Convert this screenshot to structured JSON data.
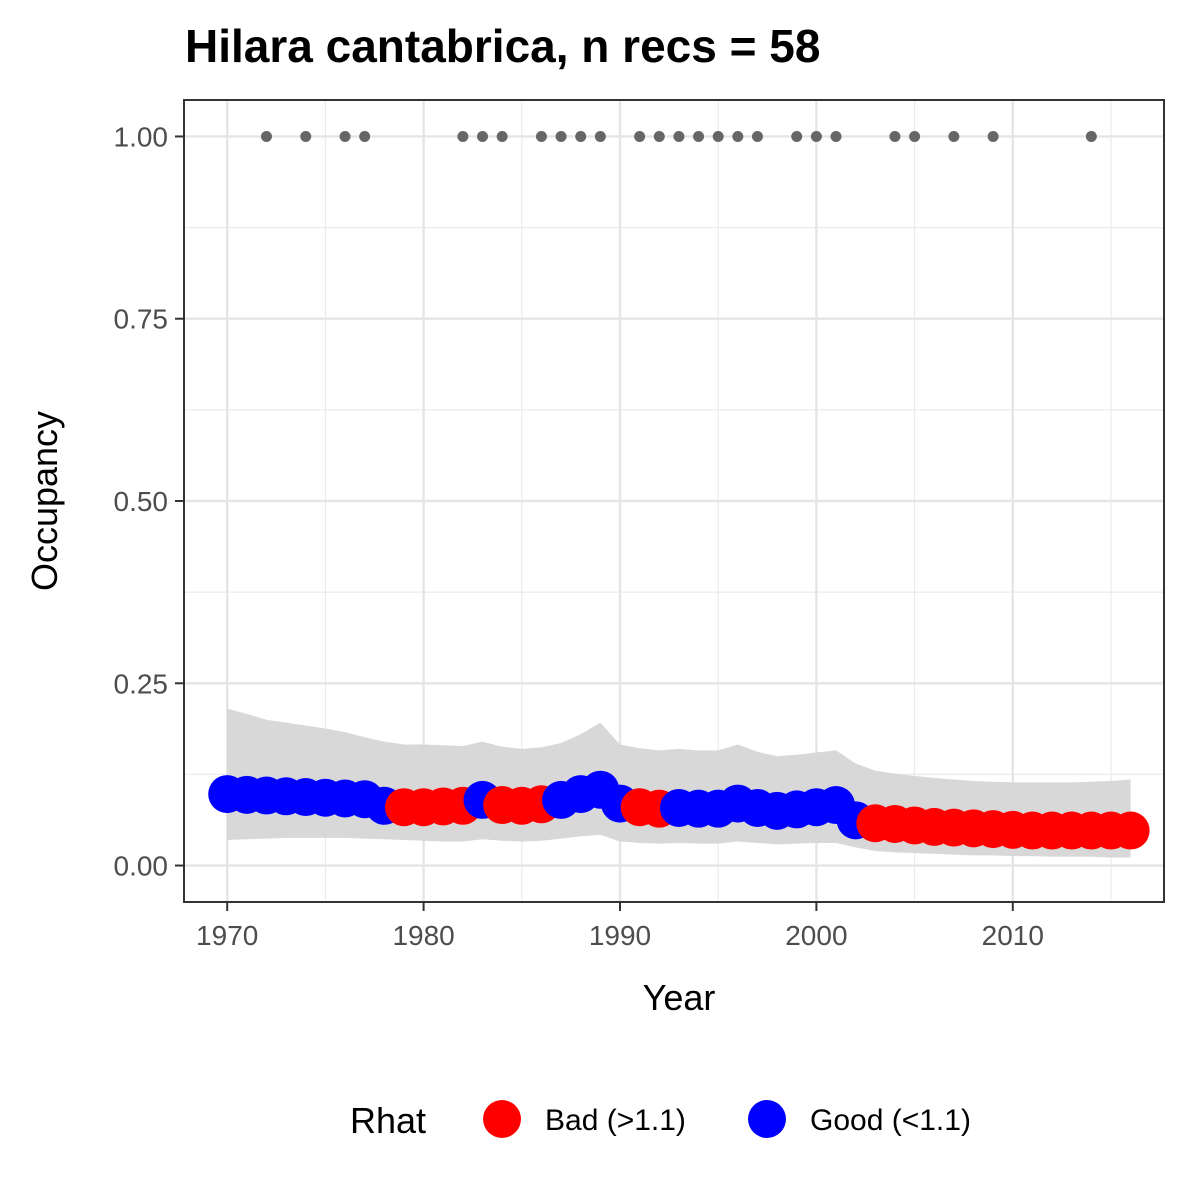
{
  "chart_data": {
    "type": "scatter",
    "title": "Hilara cantabrica, n recs = 58",
    "xlabel": "Year",
    "ylabel": "Occupancy",
    "xlim": [
      1967.8,
      2017.7
    ],
    "ylim": [
      -0.05,
      1.05
    ],
    "x_ticks": [
      1970,
      1980,
      1990,
      2000,
      2010
    ],
    "x_tick_labels": [
      "1970",
      "1980",
      "1990",
      "2000",
      "2010"
    ],
    "y_ticks": [
      0,
      0.25,
      0.5,
      0.75,
      1.0
    ],
    "y_tick_labels": [
      "0.00",
      "0.25",
      "0.50",
      "0.75",
      "1.00"
    ],
    "grid": true,
    "legend": {
      "title": "Rhat",
      "position": "bottom",
      "entries": [
        {
          "label": "Bad (>1.1)",
          "color": "#ff0000"
        },
        {
          "label": "Good (<1.1)",
          "color": "#0000ff"
        }
      ]
    },
    "colors": {
      "bad": "#ff0000",
      "good": "#0000ff",
      "ribbon": "#d6d6d6",
      "records": "#666666"
    },
    "record_years": [
      1972,
      1974,
      1976,
      1977,
      1982,
      1983,
      1984,
      1986,
      1987,
      1988,
      1989,
      1991,
      1992,
      1993,
      1994,
      1995,
      1996,
      1997,
      1999,
      2000,
      2001,
      2004,
      2005,
      2007,
      2009,
      2014
    ],
    "record_value": 1.0,
    "series": [
      {
        "x": [
          1970,
          1971,
          1972,
          1973,
          1974,
          1975,
          1976,
          1977,
          1978,
          1979,
          1980,
          1981,
          1982,
          1983,
          1984,
          1985,
          1986,
          1987,
          1988,
          1989,
          1990,
          1991,
          1992,
          1993,
          1994,
          1995,
          1996,
          1997,
          1998,
          1999,
          2000,
          2001,
          2002,
          2003,
          2004,
          2005,
          2006,
          2007,
          2008,
          2009,
          2010,
          2011,
          2012,
          2013,
          2014,
          2015,
          2016
        ],
        "y": [
          0.098,
          0.097,
          0.096,
          0.095,
          0.094,
          0.093,
          0.092,
          0.091,
          0.082,
          0.08,
          0.08,
          0.081,
          0.082,
          0.09,
          0.083,
          0.082,
          0.084,
          0.09,
          0.098,
          0.104,
          0.085,
          0.08,
          0.078,
          0.079,
          0.078,
          0.078,
          0.085,
          0.079,
          0.075,
          0.077,
          0.08,
          0.083,
          0.062,
          0.058,
          0.057,
          0.055,
          0.053,
          0.052,
          0.051,
          0.05,
          0.049,
          0.048,
          0.048,
          0.048,
          0.048,
          0.048,
          0.048
        ],
        "rhat": [
          "Good",
          "Good",
          "Good",
          "Good",
          "Good",
          "Good",
          "Good",
          "Good",
          "Good",
          "Bad",
          "Bad",
          "Bad",
          "Bad",
          "Good",
          "Bad",
          "Bad",
          "Bad",
          "Good",
          "Good",
          "Good",
          "Good",
          "Bad",
          "Bad",
          "Good",
          "Good",
          "Good",
          "Good",
          "Good",
          "Good",
          "Good",
          "Good",
          "Good",
          "Good",
          "Bad",
          "Bad",
          "Bad",
          "Bad",
          "Bad",
          "Bad",
          "Bad",
          "Bad",
          "Bad",
          "Bad",
          "Bad",
          "Bad",
          "Bad",
          "Bad"
        ],
        "lower": [
          0.035,
          0.036,
          0.037,
          0.038,
          0.038,
          0.038,
          0.038,
          0.037,
          0.036,
          0.035,
          0.034,
          0.033,
          0.033,
          0.036,
          0.034,
          0.033,
          0.034,
          0.037,
          0.04,
          0.042,
          0.033,
          0.031,
          0.03,
          0.031,
          0.03,
          0.03,
          0.033,
          0.031,
          0.029,
          0.03,
          0.031,
          0.031,
          0.025,
          0.02,
          0.018,
          0.017,
          0.016,
          0.015,
          0.014,
          0.014,
          0.013,
          0.013,
          0.012,
          0.012,
          0.012,
          0.011,
          0.011
        ],
        "upper": [
          0.215,
          0.208,
          0.2,
          0.196,
          0.192,
          0.188,
          0.183,
          0.176,
          0.17,
          0.166,
          0.166,
          0.165,
          0.164,
          0.17,
          0.163,
          0.16,
          0.162,
          0.168,
          0.18,
          0.196,
          0.166,
          0.161,
          0.158,
          0.16,
          0.158,
          0.158,
          0.166,
          0.156,
          0.15,
          0.152,
          0.155,
          0.158,
          0.14,
          0.13,
          0.126,
          0.123,
          0.12,
          0.118,
          0.116,
          0.115,
          0.114,
          0.114,
          0.114,
          0.114,
          0.115,
          0.116,
          0.118
        ]
      }
    ]
  }
}
